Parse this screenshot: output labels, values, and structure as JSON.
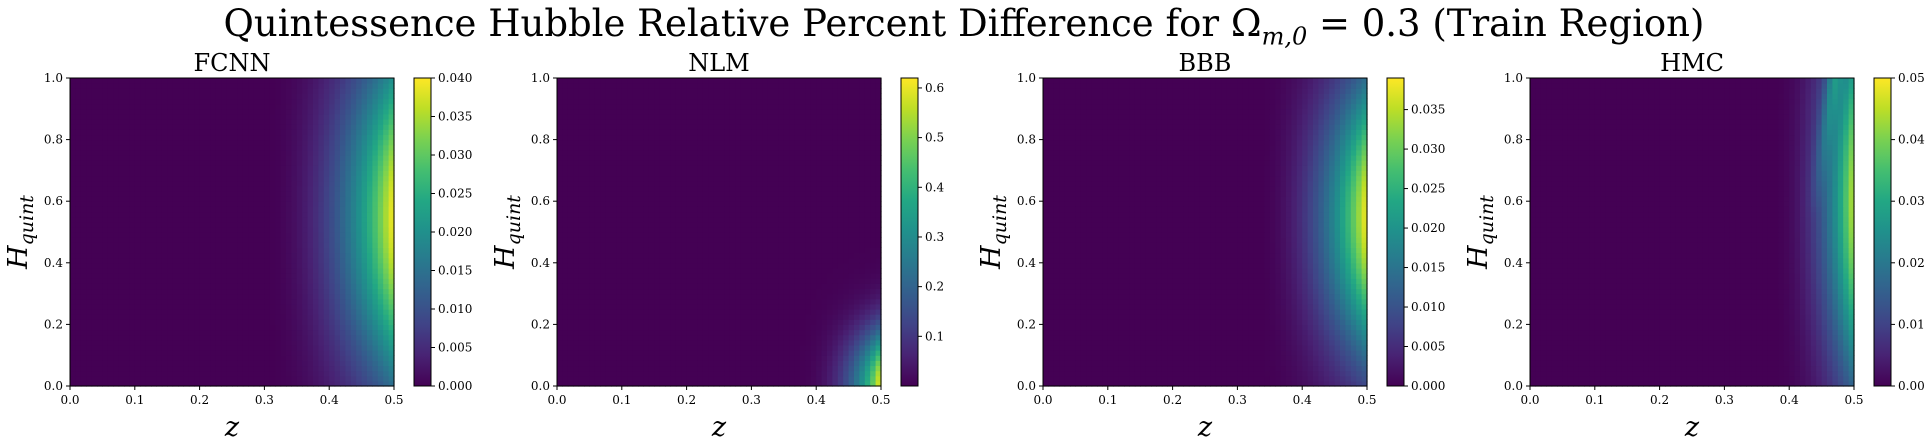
{
  "figure": {
    "title_main": "Quintessence Hubble Relative Percent Difference for Ω",
    "title_sub": "m,0",
    "title_tail": " = 0.3 (Train Region)"
  },
  "chart_data": [
    {
      "type": "heatmap",
      "title": "FCNN",
      "xlabel": "z",
      "ylabel_main": "H",
      "ylabel_sub": "quint",
      "xlim": [
        0.0,
        0.5
      ],
      "ylim": [
        0.0,
        1.0
      ],
      "xticks": [
        "0.0",
        "0.1",
        "0.2",
        "0.3",
        "0.4",
        "0.5"
      ],
      "yticks": [
        "0.0",
        "0.2",
        "0.4",
        "0.6",
        "0.8",
        "1.0"
      ],
      "colormap": "viridis",
      "clim": [
        0.0,
        0.04
      ],
      "colorbar_ticks": [
        "0.000",
        "0.005",
        "0.010",
        "0.015",
        "0.020",
        "0.025",
        "0.030",
        "0.035",
        "0.040"
      ],
      "pattern": {
        "z_onset": 0.3,
        "peak": 0.04,
        "peak_y": 0.55,
        "y_width": 0.55,
        "exp": 2.2,
        "ridge": 0,
        "ridge_strength": 0
      }
    },
    {
      "type": "heatmap",
      "title": "NLM",
      "xlabel": "z",
      "ylabel_main": "H",
      "ylabel_sub": "quint",
      "xlim": [
        0.0,
        0.5
      ],
      "ylim": [
        0.0,
        1.0
      ],
      "xticks": [
        "0.0",
        "0.1",
        "0.2",
        "0.3",
        "0.4",
        "0.5"
      ],
      "yticks": [
        "0.0",
        "0.2",
        "0.4",
        "0.6",
        "0.8",
        "1.0"
      ],
      "colormap": "viridis",
      "clim": [
        0.0,
        0.62
      ],
      "colorbar_ticks": [
        "0.1",
        "0.2",
        "0.3",
        "0.4",
        "0.5",
        "0.6"
      ],
      "pattern": {
        "z_onset": 0.36,
        "peak": 0.62,
        "peak_y": 0.0,
        "y_width": 0.18,
        "exp": 3.0,
        "ridge": 0,
        "ridge_strength": 0
      }
    },
    {
      "type": "heatmap",
      "title": "BBB",
      "xlabel": "z",
      "ylabel_main": "H",
      "ylabel_sub": "quint",
      "xlim": [
        0.0,
        0.5
      ],
      "ylim": [
        0.0,
        1.0
      ],
      "xticks": [
        "0.0",
        "0.1",
        "0.2",
        "0.3",
        "0.4",
        "0.5"
      ],
      "yticks": [
        "0.0",
        "0.2",
        "0.4",
        "0.6",
        "0.8",
        "1.0"
      ],
      "colormap": "viridis",
      "clim": [
        0.0,
        0.039
      ],
      "colorbar_ticks": [
        "0.000",
        "0.005",
        "0.010",
        "0.015",
        "0.020",
        "0.025",
        "0.030",
        "0.035"
      ],
      "pattern": {
        "z_onset": 0.33,
        "peak": 0.039,
        "peak_y": 0.55,
        "y_width": 0.45,
        "exp": 2.2,
        "ridge": 0,
        "ridge_strength": 0
      }
    },
    {
      "type": "heatmap",
      "title": "HMC",
      "xlabel": "z",
      "ylabel_main": "H",
      "ylabel_sub": "quint",
      "xlim": [
        0.0,
        0.5
      ],
      "ylim": [
        0.0,
        1.0
      ],
      "xticks": [
        "0.0",
        "0.1",
        "0.2",
        "0.3",
        "0.4",
        "0.5"
      ],
      "yticks": [
        "0.0",
        "0.2",
        "0.4",
        "0.6",
        "0.8",
        "1.0"
      ],
      "colormap": "viridis",
      "clim": [
        0.0,
        0.05
      ],
      "colorbar_ticks": [
        "0.00",
        "0.01",
        "0.02",
        "0.03",
        "0.04",
        "0.05"
      ],
      "pattern": {
        "z_onset": 0.37,
        "peak": 0.046,
        "peak_y": 0.6,
        "y_width": 0.6,
        "exp": 2.5,
        "ridge": 1,
        "ridge_strength": 0.012
      }
    }
  ]
}
